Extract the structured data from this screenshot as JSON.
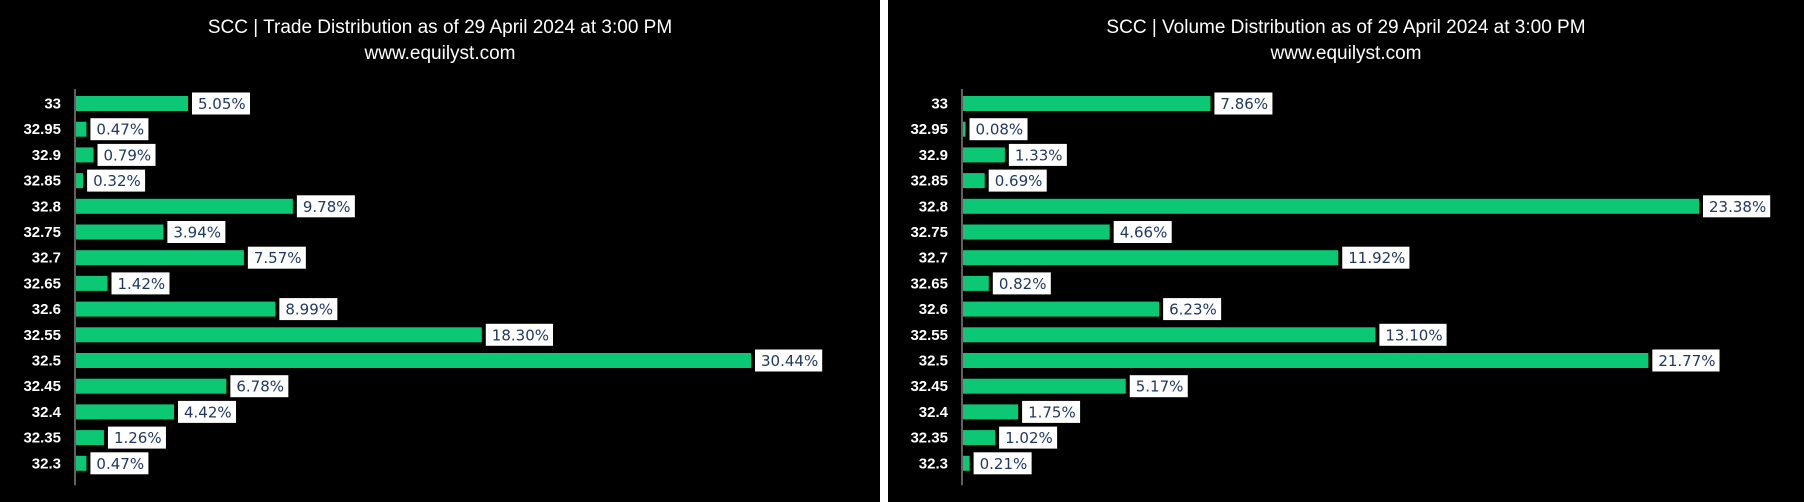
{
  "colors": {
    "background": "#000000",
    "bar": "#0cc774",
    "label_box": "#ffffff",
    "label_text": "#1f3864",
    "axis": "#bfbfbf",
    "text": "#ffffff"
  },
  "chart_data": [
    {
      "type": "bar",
      "orientation": "horizontal",
      "title": "SCC | Trade Distribution as of 29 April 2024 at 3:00 PM",
      "subtitle": "www.equilyst.com",
      "categories": [
        "33",
        "32.95",
        "32.9",
        "32.85",
        "32.8",
        "32.75",
        "32.7",
        "32.65",
        "32.6",
        "32.55",
        "32.5",
        "32.45",
        "32.4",
        "32.35",
        "32.3"
      ],
      "values": [
        5.05,
        0.47,
        0.79,
        0.32,
        9.78,
        3.94,
        7.57,
        1.42,
        8.99,
        18.3,
        30.44,
        6.78,
        4.42,
        1.26,
        0.47
      ],
      "value_labels": [
        "5.05%",
        "0.47%",
        "0.79%",
        "0.32%",
        "9.78%",
        "3.94%",
        "7.57%",
        "1.42%",
        "8.99%",
        "18.30%",
        "30.44%",
        "6.78%",
        "4.42%",
        "1.26%",
        "0.47%"
      ],
      "unit": "%",
      "xlim": [
        0,
        30.44
      ],
      "grid": false,
      "legend": "none"
    },
    {
      "type": "bar",
      "orientation": "horizontal",
      "title": "SCC | Volume Distribution as of 29 April 2024 at 3:00 PM",
      "subtitle": "www.equilyst.com",
      "categories": [
        "33",
        "32.95",
        "32.9",
        "32.85",
        "32.8",
        "32.75",
        "32.7",
        "32.65",
        "32.6",
        "32.55",
        "32.5",
        "32.45",
        "32.4",
        "32.35",
        "32.3"
      ],
      "values": [
        7.86,
        0.08,
        1.33,
        0.69,
        23.38,
        4.66,
        11.92,
        0.82,
        6.23,
        13.1,
        21.77,
        5.17,
        1.75,
        1.02,
        0.21
      ],
      "value_labels": [
        "7.86%",
        "0.08%",
        "1.33%",
        "0.69%",
        "23.38%",
        "4.66%",
        "11.92%",
        "0.82%",
        "6.23%",
        "13.10%",
        "21.77%",
        "5.17%",
        "1.75%",
        "1.02%",
        "0.21%"
      ],
      "unit": "%",
      "xlim": [
        0,
        23.38
      ],
      "grid": false,
      "legend": "none"
    }
  ]
}
